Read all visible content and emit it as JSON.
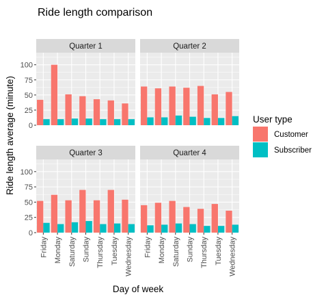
{
  "chart_data": {
    "type": "bar",
    "title": "Ride length comparison",
    "xlabel": "Day of week",
    "ylabel": "Ride length average  (minute)",
    "ylim": [
      0,
      120
    ],
    "yticks": [
      0,
      25,
      50,
      75,
      100
    ],
    "categories": [
      "Friday",
      "Monday",
      "Saturday",
      "Sunday",
      "Thursday",
      "Tuesday",
      "Wednesday"
    ],
    "legend": {
      "title": "User type",
      "placement": "right",
      "entries": [
        {
          "name": "Customer",
          "color": "#F8766D"
        },
        {
          "name": "Subscriber",
          "color": "#00BFC4"
        }
      ]
    },
    "grid": true,
    "facets": [
      {
        "label": "Quarter 1",
        "series": [
          {
            "name": "Customer",
            "values": [
              42,
              100,
              51,
              48,
              43,
              41,
              36
            ]
          },
          {
            "name": "Subscriber",
            "values": [
              10,
              10,
              11,
              11,
              10,
              10,
              10
            ]
          }
        ]
      },
      {
        "label": "Quarter 2",
        "series": [
          {
            "name": "Customer",
            "values": [
              64,
              61,
              64,
              62,
              65,
              51,
              55
            ]
          },
          {
            "name": "Subscriber",
            "values": [
              13,
              13,
              16,
              14,
              12,
              12,
              15
            ]
          }
        ]
      },
      {
        "label": "Quarter 3",
        "series": [
          {
            "name": "Customer",
            "values": [
              52,
              62,
              53,
              70,
              53,
              70,
              54
            ]
          },
          {
            "name": "Subscriber",
            "values": [
              16,
              14,
              17,
              19,
              14,
              15,
              14
            ]
          }
        ]
      },
      {
        "label": "Quarter 4",
        "series": [
          {
            "name": "Customer",
            "values": [
              45,
              49,
              52,
              42,
              39,
              47,
              36
            ]
          },
          {
            "name": "Subscriber",
            "values": [
              12,
              13,
              15,
              14,
              11,
              11,
              13
            ]
          }
        ]
      }
    ]
  }
}
